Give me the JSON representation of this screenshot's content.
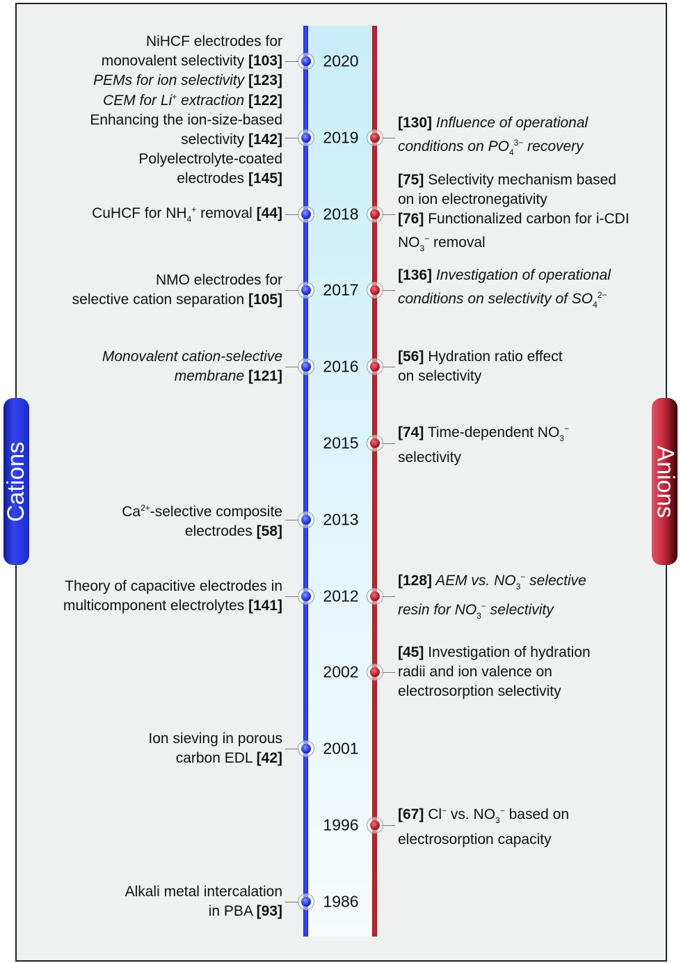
{
  "tabs": {
    "left": "Cations",
    "right": "Anions"
  },
  "colors": {
    "cations": "#2233ee",
    "anions": "#c0202a",
    "band": "#c9eef9"
  },
  "timeline": [
    {
      "year": "2020",
      "left": [
        [
          {
            "t": "NiHCF electrodes for"
          }
        ],
        [
          {
            "t": "monovalent selectivity "
          },
          {
            "t": "[103]",
            "s": "b"
          }
        ],
        [
          {
            "t": "PEMs for ion selectivity ",
            "s": "i"
          },
          {
            "t": "[123]",
            "s": "b"
          }
        ]
      ],
      "right": null
    },
    {
      "year": "2019",
      "left": [
        [
          {
            "t": "CEM for Li",
            "s": "i"
          },
          {
            "t": "+",
            "s": "sup"
          },
          {
            "t": " extraction ",
            "s": "i"
          },
          {
            "t": "[122]",
            "s": "b"
          }
        ],
        [
          {
            "t": "Enhancing the ion-size-based"
          }
        ],
        [
          {
            "t": "selectivity "
          },
          {
            "t": "[142]",
            "s": "b"
          }
        ],
        [
          {
            "t": "Polyelectrolyte-coated"
          }
        ],
        [
          {
            "t": "electrodes "
          },
          {
            "t": "[145]",
            "s": "b"
          }
        ]
      ],
      "right": [
        [
          {
            "t": "[130]",
            "s": "b"
          },
          {
            "t": " Influence of operational",
            "s": "i"
          }
        ],
        [
          {
            "t": "conditions on PO",
            "s": "i"
          },
          {
            "t": "4",
            "s": "sub"
          },
          {
            "t": "3−",
            "s": "sup"
          },
          {
            "t": " recovery",
            "s": "i"
          }
        ]
      ]
    },
    {
      "year": "2018",
      "left": [
        [
          {
            "t": "CuHCF for NH"
          },
          {
            "t": "4",
            "s": "sub"
          },
          {
            "t": "+",
            "s": "sup"
          },
          {
            "t": " removal "
          },
          {
            "t": "[44]",
            "s": "b"
          }
        ]
      ],
      "right": [
        [
          {
            "t": "[75]",
            "s": "b"
          },
          {
            "t": " Selectivity mechanism based"
          }
        ],
        [
          {
            "t": "on ion electronegativity"
          }
        ],
        [
          {
            "t": "[76]",
            "s": "b"
          },
          {
            "t": " Functionalized carbon for i-CDI"
          }
        ],
        [
          {
            "t": "NO"
          },
          {
            "t": "3",
            "s": "sub"
          },
          {
            "t": "−",
            "s": "sup"
          },
          {
            "t": " removal"
          }
        ]
      ]
    },
    {
      "year": "2017",
      "left": [
        [
          {
            "t": "NMO electrodes for"
          }
        ],
        [
          {
            "t": "selective cation separation "
          },
          {
            "t": "[105]",
            "s": "b"
          }
        ]
      ],
      "right": [
        [
          {
            "t": "[136]",
            "s": "b"
          },
          {
            "t": " Investigation of operational",
            "s": "i"
          }
        ],
        [
          {
            "t": "conditions on selectivity of SO",
            "s": "i"
          },
          {
            "t": "4",
            "s": "sub"
          },
          {
            "t": "2−",
            "s": "sup"
          }
        ]
      ]
    },
    {
      "year": "2016",
      "left": [
        [
          {
            "t": "Monovalent cation-selective",
            "s": "i"
          }
        ],
        [
          {
            "t": "membrane ",
            "s": "i"
          },
          {
            "t": "[121]",
            "s": "b"
          }
        ]
      ],
      "right": [
        [
          {
            "t": "[56]",
            "s": "b"
          },
          {
            "t": " Hydration ratio effect"
          }
        ],
        [
          {
            "t": "on selectivity"
          }
        ]
      ]
    },
    {
      "year": "2015",
      "left": null,
      "right": [
        [
          {
            "t": "[74]",
            "s": "b"
          },
          {
            "t": " Time-dependent NO"
          },
          {
            "t": "3",
            "s": "sub"
          },
          {
            "t": "−",
            "s": "sup"
          }
        ],
        [
          {
            "t": "selectivity"
          }
        ]
      ]
    },
    {
      "year": "2013",
      "left": [
        [
          {
            "t": "Ca"
          },
          {
            "t": "2+",
            "s": "sup"
          },
          {
            "t": "-selective composite"
          }
        ],
        [
          {
            "t": "electrodes "
          },
          {
            "t": "[58]",
            "s": "b"
          }
        ]
      ],
      "right": null
    },
    {
      "year": "2012",
      "left": [
        [
          {
            "t": "Theory of capacitive electrodes in"
          }
        ],
        [
          {
            "t": "multicomponent electrolytes "
          },
          {
            "t": "[141]",
            "s": "b"
          }
        ]
      ],
      "right": [
        [
          {
            "t": "[128]",
            "s": "b"
          },
          {
            "t": " AEM vs. NO",
            "s": "i"
          },
          {
            "t": "3",
            "s": "sub"
          },
          {
            "t": "−",
            "s": "sup"
          },
          {
            "t": " selective",
            "s": "i"
          }
        ],
        [
          {
            "t": "resin for NO",
            "s": "i"
          },
          {
            "t": "3",
            "s": "sub"
          },
          {
            "t": "−",
            "s": "sup"
          },
          {
            "t": " selectivity",
            "s": "i"
          }
        ]
      ]
    },
    {
      "year": "2002",
      "left": null,
      "right": [
        [
          {
            "t": "[45]",
            "s": "b"
          },
          {
            "t": " Investigation of hydration"
          }
        ],
        [
          {
            "t": "radii and ion valence on"
          }
        ],
        [
          {
            "t": "electrosorption selectivity"
          }
        ]
      ]
    },
    {
      "year": "2001",
      "left": [
        [
          {
            "t": "Ion sieving in porous"
          }
        ],
        [
          {
            "t": "carbon EDL "
          },
          {
            "t": "[42]",
            "s": "b"
          }
        ]
      ],
      "right": null
    },
    {
      "year": "1996",
      "left": null,
      "right": [
        [
          {
            "t": "[67]",
            "s": "b"
          },
          {
            "t": " Cl"
          },
          {
            "t": "−",
            "s": "sup"
          },
          {
            "t": " vs. NO"
          },
          {
            "t": "3",
            "s": "sub"
          },
          {
            "t": "−",
            "s": "sup"
          },
          {
            "t": " based on"
          }
        ],
        [
          {
            "t": "electrosorption capacity"
          }
        ]
      ]
    },
    {
      "year": "1986",
      "left": [
        [
          {
            "t": "Alkali metal intercalation"
          }
        ],
        [
          {
            "t": "in PBA "
          },
          {
            "t": "[93]",
            "s": "b"
          }
        ]
      ],
      "right": null
    }
  ]
}
